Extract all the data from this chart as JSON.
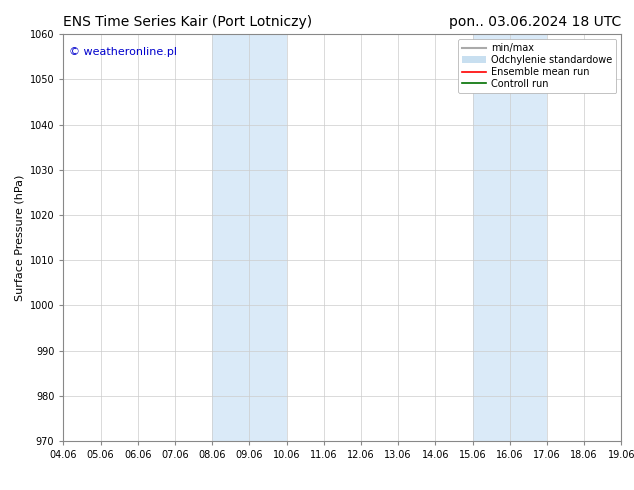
{
  "title_left": "ENS Time Series Kair (Port Lotniczy)",
  "title_right": "pon.. 03.06.2024 18 UTC",
  "ylabel": "Surface Pressure (hPa)",
  "ylim": [
    970,
    1060
  ],
  "yticks": [
    970,
    980,
    990,
    1000,
    1010,
    1020,
    1030,
    1040,
    1050,
    1060
  ],
  "xtick_labels": [
    "04.06",
    "05.06",
    "06.06",
    "07.06",
    "08.06",
    "09.06",
    "10.06",
    "11.06",
    "12.06",
    "13.06",
    "14.06",
    "15.06",
    "16.06",
    "17.06",
    "18.06",
    "19.06"
  ],
  "xmin": 0,
  "xmax": 15,
  "shaded_regions": [
    {
      "xstart": 4,
      "xend": 6,
      "color": "#daeaf8"
    },
    {
      "xstart": 11,
      "xend": 13,
      "color": "#daeaf8"
    }
  ],
  "watermark": "© weatheronline.pl",
  "watermark_color": "#0000cc",
  "background_color": "#ffffff",
  "plot_background": "#ffffff",
  "legend_items": [
    {
      "label": "min/max",
      "color": "#aaaaaa",
      "style": "line",
      "lw": 1.5
    },
    {
      "label": "Odchylenie standardowe",
      "color": "#c8dff0",
      "style": "bar"
    },
    {
      "label": "Ensemble mean run",
      "color": "#ff0000",
      "style": "line",
      "lw": 1.2
    },
    {
      "label": "Controll run",
      "color": "#007000",
      "style": "line",
      "lw": 1.2
    }
  ],
  "title_fontsize": 10,
  "tick_fontsize": 7,
  "ylabel_fontsize": 8,
  "watermark_fontsize": 8,
  "legend_fontsize": 7
}
